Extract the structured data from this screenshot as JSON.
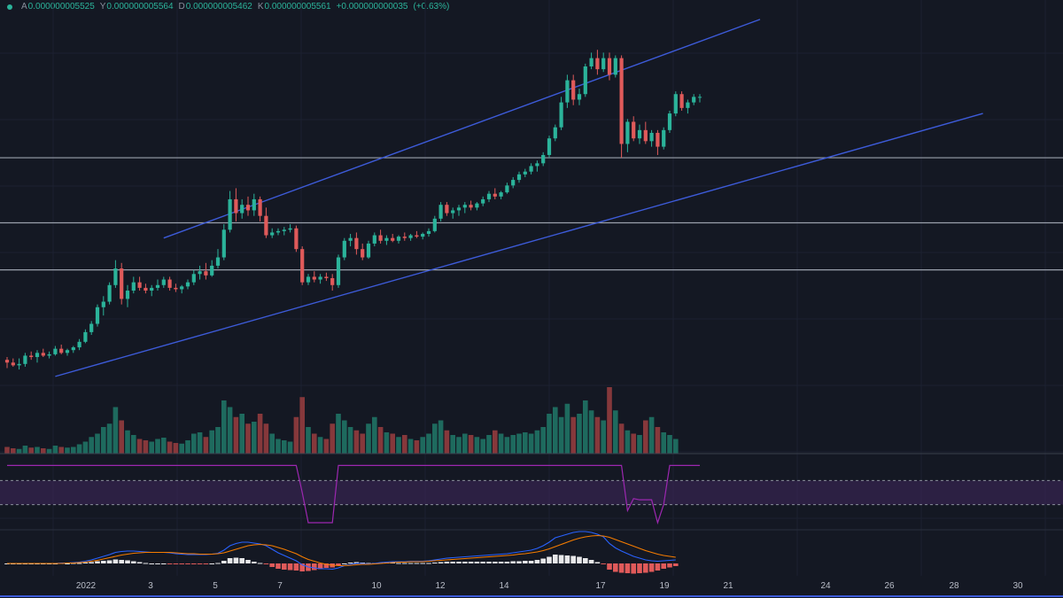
{
  "legend": {
    "open_label": "A",
    "open": "0.000000005525",
    "high_label": "Y",
    "high": "0.000000005564",
    "low_label": "D",
    "low": "0.000000005462",
    "close_label": "K",
    "close": "0.000000005561",
    "change": "+0.000000000035",
    "change_pct": "(+0.63%)"
  },
  "colors": {
    "background": "#141823",
    "up": "#2bb39a",
    "down": "#e05a5a",
    "channel": "#3d5bd9",
    "rsi": "#9c27b0",
    "macd": "#2962ff",
    "signal": "#f57c00"
  },
  "chart_data": {
    "type": "candlestick",
    "x_tick_labels": [
      "2022",
      "3",
      "5",
      "7",
      "10",
      "12",
      "14",
      "17",
      "19",
      "21",
      "24",
      "26",
      "28",
      "30"
    ],
    "horizontal_levels": [
      4.45,
      6.15,
      8.5
    ],
    "candles": [
      {
        "o": 1.2,
        "h": 1.3,
        "l": 0.9,
        "c": 1.1
      },
      {
        "o": 1.1,
        "h": 1.25,
        "l": 0.95,
        "c": 1.0
      },
      {
        "o": 1.0,
        "h": 1.25,
        "l": 0.85,
        "c": 1.05
      },
      {
        "o": 1.05,
        "h": 1.45,
        "l": 0.95,
        "c": 1.35
      },
      {
        "o": 1.35,
        "h": 1.5,
        "l": 1.2,
        "c": 1.3
      },
      {
        "o": 1.3,
        "h": 1.55,
        "l": 1.1,
        "c": 1.45
      },
      {
        "o": 1.45,
        "h": 1.6,
        "l": 1.3,
        "c": 1.35
      },
      {
        "o": 1.35,
        "h": 1.5,
        "l": 1.25,
        "c": 1.4
      },
      {
        "o": 1.4,
        "h": 1.7,
        "l": 1.35,
        "c": 1.6
      },
      {
        "o": 1.6,
        "h": 1.75,
        "l": 1.4,
        "c": 1.45
      },
      {
        "o": 1.45,
        "h": 1.6,
        "l": 1.35,
        "c": 1.55
      },
      {
        "o": 1.55,
        "h": 1.7,
        "l": 1.45,
        "c": 1.65
      },
      {
        "o": 1.65,
        "h": 1.95,
        "l": 1.55,
        "c": 1.85
      },
      {
        "o": 1.85,
        "h": 2.3,
        "l": 1.8,
        "c": 2.2
      },
      {
        "o": 2.2,
        "h": 2.6,
        "l": 2.1,
        "c": 2.5
      },
      {
        "o": 2.5,
        "h": 3.2,
        "l": 2.4,
        "c": 3.1
      },
      {
        "o": 3.1,
        "h": 3.5,
        "l": 2.8,
        "c": 3.3
      },
      {
        "o": 3.3,
        "h": 4.0,
        "l": 3.2,
        "c": 3.9
      },
      {
        "o": 3.9,
        "h": 4.8,
        "l": 3.8,
        "c": 4.5
      },
      {
        "o": 4.5,
        "h": 4.7,
        "l": 3.2,
        "c": 3.4
      },
      {
        "o": 3.4,
        "h": 3.9,
        "l": 3.1,
        "c": 3.7
      },
      {
        "o": 3.7,
        "h": 4.2,
        "l": 3.6,
        "c": 4.0
      },
      {
        "o": 4.0,
        "h": 4.2,
        "l": 3.7,
        "c": 3.8
      },
      {
        "o": 3.8,
        "h": 3.95,
        "l": 3.6,
        "c": 3.7
      },
      {
        "o": 3.7,
        "h": 3.9,
        "l": 3.5,
        "c": 3.8
      },
      {
        "o": 3.8,
        "h": 4.1,
        "l": 3.7,
        "c": 3.9
      },
      {
        "o": 3.9,
        "h": 4.2,
        "l": 3.8,
        "c": 4.1
      },
      {
        "o": 4.1,
        "h": 4.2,
        "l": 3.7,
        "c": 3.8
      },
      {
        "o": 3.8,
        "h": 3.95,
        "l": 3.65,
        "c": 3.75
      },
      {
        "o": 3.75,
        "h": 3.9,
        "l": 3.6,
        "c": 3.85
      },
      {
        "o": 3.85,
        "h": 4.1,
        "l": 3.75,
        "c": 4.0
      },
      {
        "o": 4.0,
        "h": 4.45,
        "l": 3.9,
        "c": 4.3
      },
      {
        "o": 4.3,
        "h": 4.6,
        "l": 4.1,
        "c": 4.4
      },
      {
        "o": 4.4,
        "h": 4.7,
        "l": 4.1,
        "c": 4.25
      },
      {
        "o": 4.25,
        "h": 4.8,
        "l": 4.2,
        "c": 4.6
      },
      {
        "o": 4.6,
        "h": 5.2,
        "l": 4.5,
        "c": 4.9
      },
      {
        "o": 4.9,
        "h": 6.1,
        "l": 4.8,
        "c": 5.9
      },
      {
        "o": 5.9,
        "h": 7.3,
        "l": 5.8,
        "c": 7.0
      },
      {
        "o": 7.0,
        "h": 7.4,
        "l": 6.2,
        "c": 6.5
      },
      {
        "o": 6.5,
        "h": 7.0,
        "l": 6.3,
        "c": 6.8
      },
      {
        "o": 6.8,
        "h": 7.1,
        "l": 6.4,
        "c": 6.6
      },
      {
        "o": 6.6,
        "h": 7.2,
        "l": 6.4,
        "c": 7.0
      },
      {
        "o": 7.0,
        "h": 7.1,
        "l": 6.2,
        "c": 6.4
      },
      {
        "o": 6.4,
        "h": 6.7,
        "l": 5.6,
        "c": 5.7
      },
      {
        "o": 5.7,
        "h": 5.95,
        "l": 5.6,
        "c": 5.8
      },
      {
        "o": 5.8,
        "h": 5.95,
        "l": 5.7,
        "c": 5.85
      },
      {
        "o": 5.85,
        "h": 6.0,
        "l": 5.7,
        "c": 5.9
      },
      {
        "o": 5.9,
        "h": 6.1,
        "l": 5.8,
        "c": 5.95
      },
      {
        "o": 5.95,
        "h": 6.05,
        "l": 5.1,
        "c": 5.2
      },
      {
        "o": 5.2,
        "h": 5.3,
        "l": 3.9,
        "c": 4.0
      },
      {
        "o": 4.0,
        "h": 4.3,
        "l": 3.9,
        "c": 4.2
      },
      {
        "o": 4.2,
        "h": 4.4,
        "l": 4.0,
        "c": 4.1
      },
      {
        "o": 4.1,
        "h": 4.3,
        "l": 3.95,
        "c": 4.2
      },
      {
        "o": 4.2,
        "h": 4.35,
        "l": 4.05,
        "c": 4.15
      },
      {
        "o": 4.15,
        "h": 4.3,
        "l": 3.7,
        "c": 3.9
      },
      {
        "o": 3.9,
        "h": 5.0,
        "l": 3.8,
        "c": 4.9
      },
      {
        "o": 4.9,
        "h": 5.6,
        "l": 4.8,
        "c": 5.5
      },
      {
        "o": 5.5,
        "h": 5.75,
        "l": 5.3,
        "c": 5.6
      },
      {
        "o": 5.6,
        "h": 5.8,
        "l": 5.0,
        "c": 5.2
      },
      {
        "o": 5.2,
        "h": 5.4,
        "l": 4.8,
        "c": 4.9
      },
      {
        "o": 4.9,
        "h": 5.5,
        "l": 4.85,
        "c": 5.4
      },
      {
        "o": 5.4,
        "h": 5.8,
        "l": 5.3,
        "c": 5.7
      },
      {
        "o": 5.7,
        "h": 5.9,
        "l": 5.4,
        "c": 5.5
      },
      {
        "o": 5.5,
        "h": 5.7,
        "l": 5.35,
        "c": 5.6
      },
      {
        "o": 5.6,
        "h": 5.75,
        "l": 5.45,
        "c": 5.5
      },
      {
        "o": 5.5,
        "h": 5.7,
        "l": 5.4,
        "c": 5.65
      },
      {
        "o": 5.65,
        "h": 5.8,
        "l": 5.5,
        "c": 5.6
      },
      {
        "o": 5.6,
        "h": 5.75,
        "l": 5.5,
        "c": 5.7
      },
      {
        "o": 5.7,
        "h": 5.85,
        "l": 5.6,
        "c": 5.65
      },
      {
        "o": 5.65,
        "h": 5.8,
        "l": 5.55,
        "c": 5.75
      },
      {
        "o": 5.75,
        "h": 5.95,
        "l": 5.65,
        "c": 5.85
      },
      {
        "o": 5.85,
        "h": 6.4,
        "l": 5.8,
        "c": 6.3
      },
      {
        "o": 6.3,
        "h": 6.9,
        "l": 6.2,
        "c": 6.8
      },
      {
        "o": 6.8,
        "h": 6.9,
        "l": 6.4,
        "c": 6.5
      },
      {
        "o": 6.5,
        "h": 6.7,
        "l": 6.3,
        "c": 6.6
      },
      {
        "o": 6.6,
        "h": 6.8,
        "l": 6.4,
        "c": 6.7
      },
      {
        "o": 6.7,
        "h": 6.9,
        "l": 6.5,
        "c": 6.8
      },
      {
        "o": 6.8,
        "h": 6.95,
        "l": 6.6,
        "c": 6.7
      },
      {
        "o": 6.7,
        "h": 6.9,
        "l": 6.6,
        "c": 6.85
      },
      {
        "o": 6.85,
        "h": 7.1,
        "l": 6.75,
        "c": 7.0
      },
      {
        "o": 7.0,
        "h": 7.3,
        "l": 6.9,
        "c": 7.2
      },
      {
        "o": 7.2,
        "h": 7.4,
        "l": 7.0,
        "c": 7.1
      },
      {
        "o": 7.1,
        "h": 7.3,
        "l": 7.0,
        "c": 7.25
      },
      {
        "o": 7.25,
        "h": 7.6,
        "l": 7.2,
        "c": 7.5
      },
      {
        "o": 7.5,
        "h": 7.8,
        "l": 7.4,
        "c": 7.7
      },
      {
        "o": 7.7,
        "h": 8.0,
        "l": 7.6,
        "c": 7.9
      },
      {
        "o": 7.9,
        "h": 8.1,
        "l": 7.8,
        "c": 8.0
      },
      {
        "o": 8.0,
        "h": 8.3,
        "l": 7.9,
        "c": 8.2
      },
      {
        "o": 8.2,
        "h": 8.4,
        "l": 8.0,
        "c": 8.3
      },
      {
        "o": 8.3,
        "h": 8.7,
        "l": 8.2,
        "c": 8.6
      },
      {
        "o": 8.6,
        "h": 9.3,
        "l": 8.5,
        "c": 9.2
      },
      {
        "o": 9.2,
        "h": 9.7,
        "l": 9.1,
        "c": 9.6
      },
      {
        "o": 9.6,
        "h": 10.7,
        "l": 9.5,
        "c": 10.5
      },
      {
        "o": 10.5,
        "h": 11.5,
        "l": 10.3,
        "c": 11.3
      },
      {
        "o": 11.3,
        "h": 11.5,
        "l": 10.4,
        "c": 10.6
      },
      {
        "o": 10.6,
        "h": 11.0,
        "l": 10.4,
        "c": 10.8
      },
      {
        "o": 10.8,
        "h": 11.9,
        "l": 10.7,
        "c": 11.8
      },
      {
        "o": 11.8,
        "h": 12.3,
        "l": 11.7,
        "c": 12.1
      },
      {
        "o": 12.1,
        "h": 12.4,
        "l": 11.5,
        "c": 11.7
      },
      {
        "o": 11.7,
        "h": 12.3,
        "l": 11.6,
        "c": 12.1
      },
      {
        "o": 12.1,
        "h": 12.3,
        "l": 11.3,
        "c": 11.5
      },
      {
        "o": 11.5,
        "h": 12.2,
        "l": 11.4,
        "c": 12.1
      },
      {
        "o": 12.1,
        "h": 12.2,
        "l": 8.5,
        "c": 9.0
      },
      {
        "o": 9.0,
        "h": 9.9,
        "l": 8.7,
        "c": 9.8
      },
      {
        "o": 9.8,
        "h": 10.0,
        "l": 9.1,
        "c": 9.2
      },
      {
        "o": 9.2,
        "h": 9.7,
        "l": 9.0,
        "c": 9.5
      },
      {
        "o": 9.5,
        "h": 9.8,
        "l": 9.0,
        "c": 9.1
      },
      {
        "o": 9.1,
        "h": 9.5,
        "l": 8.9,
        "c": 9.4
      },
      {
        "o": 9.4,
        "h": 9.5,
        "l": 8.6,
        "c": 8.9
      },
      {
        "o": 8.9,
        "h": 9.6,
        "l": 8.8,
        "c": 9.5
      },
      {
        "o": 9.5,
        "h": 10.2,
        "l": 9.4,
        "c": 10.1
      },
      {
        "o": 10.1,
        "h": 10.9,
        "l": 10.0,
        "c": 10.8
      },
      {
        "o": 10.8,
        "h": 10.9,
        "l": 10.2,
        "c": 10.3
      },
      {
        "o": 10.3,
        "h": 10.6,
        "l": 10.1,
        "c": 10.5
      },
      {
        "o": 10.5,
        "h": 10.8,
        "l": 10.4,
        "c": 10.7
      },
      {
        "o": 10.7,
        "h": 10.8,
        "l": 10.5,
        "c": 10.7
      }
    ],
    "volume": [
      0.1,
      0.08,
      0.07,
      0.12,
      0.09,
      0.1,
      0.08,
      0.07,
      0.12,
      0.1,
      0.09,
      0.1,
      0.14,
      0.18,
      0.25,
      0.3,
      0.4,
      0.45,
      0.7,
      0.5,
      0.35,
      0.28,
      0.22,
      0.2,
      0.18,
      0.22,
      0.24,
      0.18,
      0.16,
      0.15,
      0.2,
      0.3,
      0.32,
      0.25,
      0.35,
      0.4,
      0.8,
      0.7,
      0.55,
      0.6,
      0.45,
      0.48,
      0.6,
      0.45,
      0.3,
      0.22,
      0.2,
      0.18,
      0.55,
      0.85,
      0.4,
      0.3,
      0.25,
      0.22,
      0.45,
      0.6,
      0.5,
      0.4,
      0.35,
      0.3,
      0.45,
      0.55,
      0.4,
      0.32,
      0.3,
      0.25,
      0.28,
      0.22,
      0.2,
      0.25,
      0.3,
      0.45,
      0.5,
      0.35,
      0.28,
      0.25,
      0.3,
      0.28,
      0.25,
      0.22,
      0.28,
      0.35,
      0.3,
      0.25,
      0.28,
      0.3,
      0.32,
      0.3,
      0.35,
      0.4,
      0.6,
      0.7,
      0.55,
      0.75,
      0.55,
      0.6,
      0.8,
      0.65,
      0.55,
      0.5,
      1.0,
      0.65,
      0.45,
      0.35,
      0.3,
      0.28,
      0.5,
      0.55,
      0.4,
      0.32,
      0.28,
      0.22
    ],
    "rsi": [
      95,
      95,
      95,
      95,
      95,
      95,
      95,
      95,
      95,
      95,
      95,
      95,
      95,
      95,
      95,
      95,
      95,
      95,
      95,
      95,
      95,
      95,
      95,
      95,
      95,
      95,
      95,
      95,
      95,
      95,
      95,
      95,
      95,
      95,
      95,
      95,
      95,
      95,
      95,
      95,
      95,
      95,
      95,
      95,
      95,
      95,
      95,
      95,
      95,
      50,
      0,
      0,
      0,
      0,
      0,
      95,
      95,
      95,
      95,
      95,
      95,
      95,
      95,
      95,
      95,
      95,
      95,
      95,
      95,
      95,
      95,
      95,
      95,
      95,
      95,
      95,
      95,
      95,
      95,
      95,
      95,
      95,
      95,
      95,
      95,
      95,
      95,
      95,
      95,
      95,
      95,
      95,
      95,
      95,
      95,
      95,
      95,
      95,
      95,
      95,
      95,
      95,
      95,
      20,
      40,
      38,
      38,
      38,
      0,
      30,
      95,
      95,
      95,
      95,
      95,
      95
    ],
    "macd_line": [
      0.0,
      0.0,
      0.0,
      0.0,
      0.0,
      0.0,
      0.0,
      0.0,
      0.0,
      0.01,
      0.01,
      0.02,
      0.03,
      0.05,
      0.08,
      0.12,
      0.16,
      0.2,
      0.25,
      0.27,
      0.28,
      0.28,
      0.27,
      0.26,
      0.25,
      0.25,
      0.25,
      0.24,
      0.22,
      0.21,
      0.2,
      0.2,
      0.2,
      0.2,
      0.21,
      0.23,
      0.3,
      0.4,
      0.45,
      0.48,
      0.48,
      0.46,
      0.44,
      0.4,
      0.32,
      0.24,
      0.18,
      0.12,
      0.06,
      -0.03,
      -0.08,
      -0.1,
      -0.12,
      -0.12,
      -0.13,
      -0.1,
      -0.05,
      -0.02,
      0.0,
      0.0,
      -0.01,
      0.0,
      0.02,
      0.03,
      0.04,
      0.04,
      0.04,
      0.05,
      0.05,
      0.05,
      0.06,
      0.08,
      0.1,
      0.12,
      0.13,
      0.14,
      0.15,
      0.16,
      0.17,
      0.18,
      0.19,
      0.2,
      0.21,
      0.22,
      0.24,
      0.26,
      0.28,
      0.3,
      0.34,
      0.4,
      0.48,
      0.58,
      0.62,
      0.66,
      0.7,
      0.72,
      0.72,
      0.7,
      0.66,
      0.6,
      0.45,
      0.35,
      0.28,
      0.22,
      0.16,
      0.12,
      0.08,
      0.06,
      0.05,
      0.06,
      0.07,
      0.08
    ],
    "signal_line": [
      0.0,
      0.0,
      0.0,
      0.0,
      0.0,
      0.0,
      0.0,
      0.0,
      0.0,
      0.0,
      0.01,
      0.01,
      0.02,
      0.03,
      0.05,
      0.07,
      0.1,
      0.13,
      0.16,
      0.19,
      0.21,
      0.23,
      0.24,
      0.25,
      0.25,
      0.25,
      0.25,
      0.25,
      0.24,
      0.23,
      0.22,
      0.22,
      0.21,
      0.21,
      0.21,
      0.22,
      0.24,
      0.28,
      0.32,
      0.36,
      0.4,
      0.42,
      0.43,
      0.42,
      0.4,
      0.36,
      0.32,
      0.27,
      0.22,
      0.15,
      0.09,
      0.05,
      0.01,
      -0.02,
      -0.04,
      -0.05,
      -0.05,
      -0.04,
      -0.03,
      -0.02,
      -0.02,
      -0.01,
      0.0,
      0.01,
      0.02,
      0.03,
      0.03,
      0.04,
      0.04,
      0.04,
      0.05,
      0.06,
      0.07,
      0.08,
      0.09,
      0.1,
      0.11,
      0.12,
      0.13,
      0.14,
      0.15,
      0.16,
      0.17,
      0.18,
      0.19,
      0.21,
      0.22,
      0.24,
      0.26,
      0.29,
      0.33,
      0.38,
      0.43,
      0.48,
      0.53,
      0.57,
      0.6,
      0.62,
      0.63,
      0.62,
      0.59,
      0.54,
      0.49,
      0.44,
      0.39,
      0.34,
      0.29,
      0.25,
      0.21,
      0.18,
      0.16,
      0.14
    ]
  }
}
